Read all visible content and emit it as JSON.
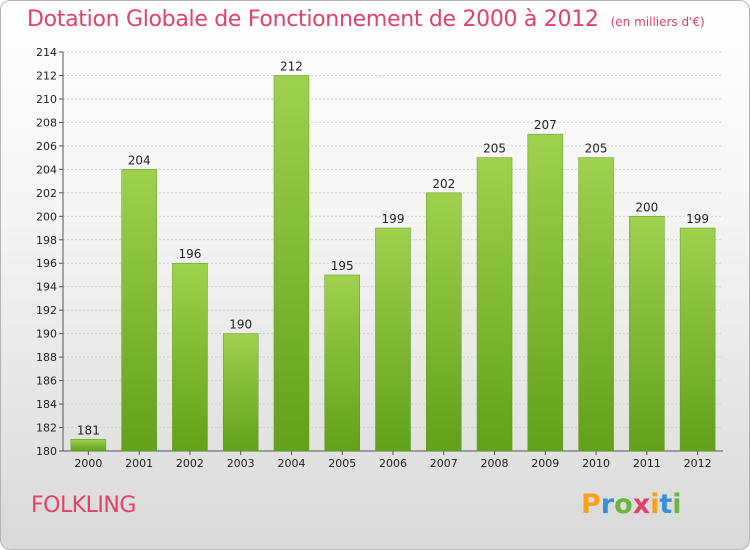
{
  "chart_data": {
    "type": "bar",
    "title": "Dotation Globale de Fonctionnement de 2000 à 2012",
    "unit_label": "(en milliers d'€)",
    "categories": [
      "2000",
      "2001",
      "2002",
      "2003",
      "2004",
      "2005",
      "2006",
      "2007",
      "2008",
      "2009",
      "2010",
      "2011",
      "2012"
    ],
    "values": [
      181,
      204,
      196,
      190,
      212,
      195,
      199,
      202,
      205,
      207,
      205,
      200,
      199
    ],
    "ylim": [
      180,
      214
    ],
    "ytick_step": 2,
    "grid": true,
    "bar_color": "#7db83a",
    "xlabel": "",
    "ylabel": ""
  },
  "location": "FOLKLING",
  "logo": {
    "letters": [
      "P",
      "r",
      "o",
      "x",
      "i",
      "t",
      "i"
    ],
    "colors": [
      "#f7a21b",
      "#3a8fd8",
      "#6cb53c",
      "#e0426a",
      "#f7a21b",
      "#3a8fd8",
      "#6cb53c"
    ]
  },
  "colors": {
    "accent": "#e0426a"
  }
}
